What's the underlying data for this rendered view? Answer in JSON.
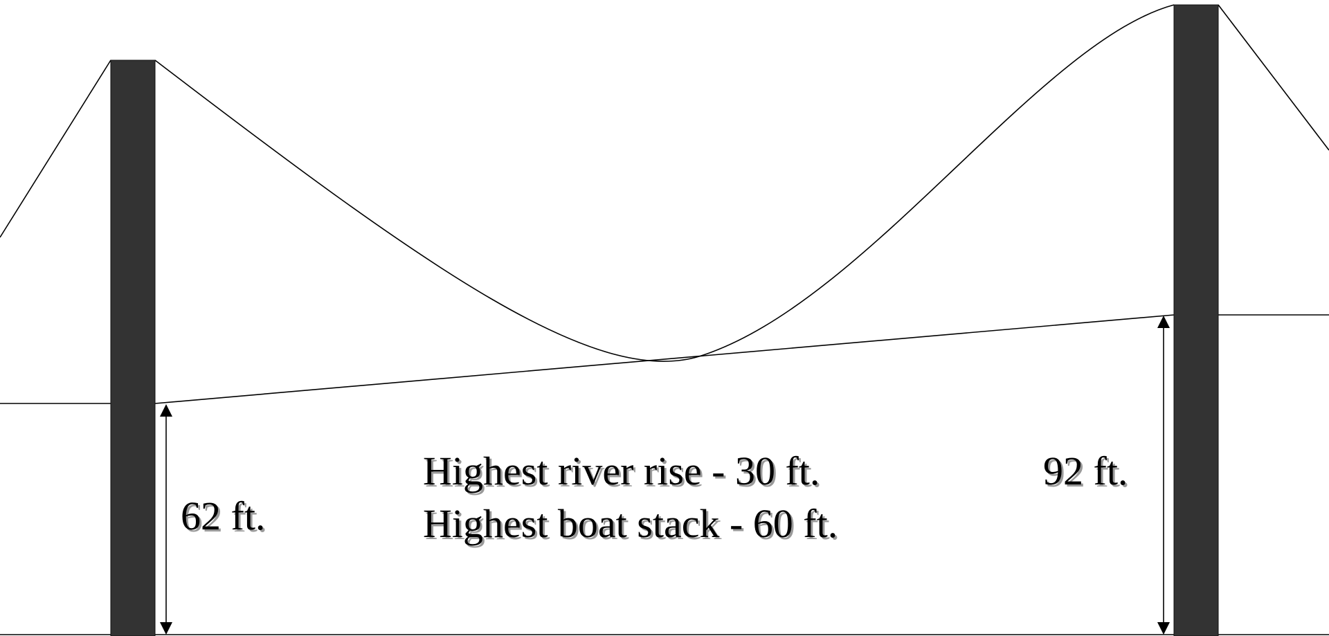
{
  "diagram": {
    "left_clearance": "62 ft.",
    "right_clearance": "92 ft.",
    "note_line_1": "Highest river rise - 30 ft.",
    "note_line_2": "Highest boat stack - 60 ft."
  },
  "colors": {
    "tower": "#333333",
    "line": "#000000",
    "text_shadow": "#9a9a9a"
  }
}
